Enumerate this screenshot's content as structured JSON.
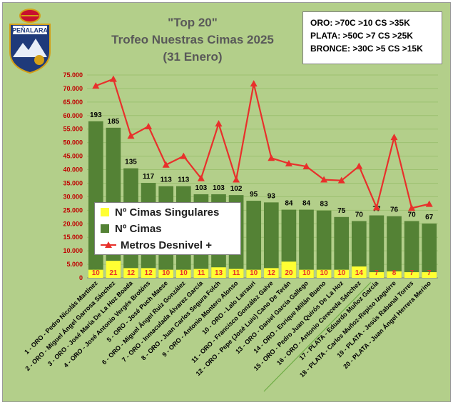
{
  "title": [
    "\"Top 20\"",
    "Trofeo Nuestras Cimas 2025",
    "(31 Enero)"
  ],
  "criteria": [
    "ORO: >70C >10 CS >35K",
    "PLATA: >50C >7 CS >25K",
    "BRONCE: >30C >5 CS >15K"
  ],
  "logo_text": "PEÑALARA",
  "legend": [
    {
      "label": "Nº Cimas Singulares",
      "color": "#ffff33"
    },
    {
      "label": "Nº Cimas",
      "color": "#548235"
    },
    {
      "label": "Metros Desnivel +",
      "color": "#e8302b"
    }
  ],
  "chart_data": {
    "type": "bar",
    "y_ticks": [
      "0",
      "5.000",
      "10.000",
      "15.000",
      "20.000",
      "25.000",
      "30.000",
      "35.000",
      "40.000",
      "45.000",
      "50.000",
      "55.000",
      "60.000",
      "65.000",
      "70.000",
      "75.000"
    ],
    "ylim": [
      0,
      75000
    ],
    "categories": [
      "1 - ORO - Pedro Nicolás Martínez",
      "2 - ORO - Miguel Ángel Garrosa Sánchez",
      "3 - ORO - José María De La Hoz Boada",
      "4 - ORO - José Antonio Vergés Brotóns",
      "5 - ORO - José Puch Maese",
      "6 - ORO - Miguel Ángel Ruiz González",
      "7 - ORO - Inmaculada Álvarez García",
      "8 - ORO - Juan Carlos Segura Folch",
      "9 - ORO - Antonio Montero Alonso",
      "10 - ORO - Lalo Larrauri",
      "11 - ORO - Francisco González Galve",
      "12 - ORO - Pepe (José Luis) Cano De Terán",
      "13 - ORO - Daniel García Gallego",
      "14 - ORO - Enrique Millán Bueno",
      "15 - ORO - Pedro Juan Quirós De La Hoz",
      "16 - ORO - Antonio Cereceda Sánchez",
      "17 - PLATA - Eduardo Muñoz García",
      "18 - PLATA - Carlos Muñoz-Repiso Izaguirre",
      "19 - PLATA - Jesús Rabanal Torres",
      "20 - PLATA - Juan Ángel Herrera Merino"
    ],
    "series": [
      {
        "name": "Nº Cimas Singulares",
        "values": [
          10,
          21,
          12,
          12,
          10,
          10,
          11,
          13,
          11,
          10,
          12,
          20,
          10,
          10,
          10,
          14,
          7,
          8,
          7,
          7
        ]
      },
      {
        "name": "Nº Cimas",
        "values": [
          193,
          185,
          135,
          117,
          113,
          113,
          103,
          103,
          102,
          95,
          93,
          84,
          84,
          83,
          75,
          70,
          77,
          76,
          70,
          67
        ]
      },
      {
        "name": "Metros Desnivel +",
        "values": [
          71000,
          73500,
          52500,
          56000,
          41800,
          45000,
          36800,
          57000,
          36300,
          71800,
          44300,
          42300,
          41200,
          36300,
          36000,
          41300,
          26000,
          52000,
          25800,
          27300
        ]
      }
    ]
  }
}
